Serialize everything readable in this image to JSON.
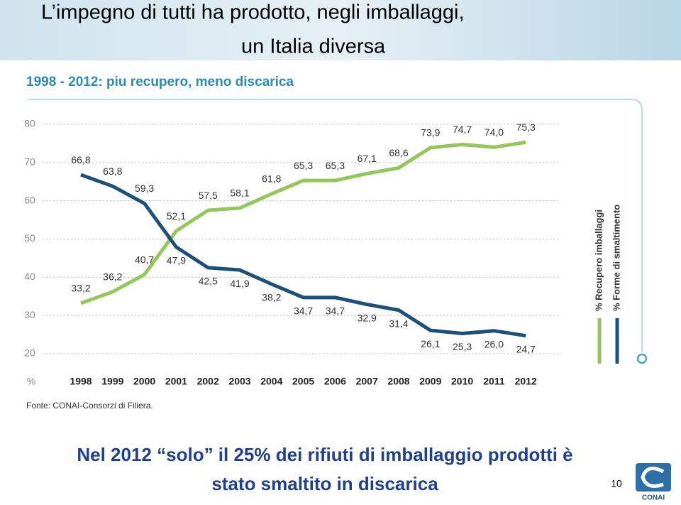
{
  "header": {
    "title_lines": [
      "L’impegno di tutti ha prodotto, negli imballaggi,",
      "un Italia diversa"
    ]
  },
  "chart_data": {
    "type": "line",
    "title": "1998 - 2012: piu recupero, meno discarica",
    "categories": [
      "1998",
      "1999",
      "2000",
      "2001",
      "2002",
      "2003",
      "2004",
      "2005",
      "2006",
      "2007",
      "2008",
      "2009",
      "2010",
      "2011",
      "2012"
    ],
    "series": [
      {
        "name": "% Recupero imballaggi",
        "color": "#93c75a",
        "values": [
          33.2,
          36.2,
          40.7,
          52.1,
          57.5,
          58.1,
          61.8,
          65.3,
          65.3,
          67.1,
          68.6,
          73.9,
          74.7,
          74.0,
          75.3
        ],
        "value_labels": [
          "33,2",
          "36,2",
          "40,7",
          "52,1",
          "57,5",
          "58,1",
          "61,8",
          "65,3",
          "65,3",
          "67,1",
          "68,6",
          "73,9",
          "74,7",
          "74,0",
          "75,3"
        ]
      },
      {
        "name": "% Forme di smaltimento",
        "color": "#1c4f7a",
        "values": [
          66.8,
          63.8,
          59.3,
          47.9,
          42.5,
          41.9,
          38.2,
          34.7,
          34.7,
          32.9,
          31.4,
          26.1,
          25.3,
          26.0,
          24.7
        ],
        "value_labels": [
          "66,8",
          "63,8",
          "59,3",
          "47,9",
          "42,5",
          "41,9",
          "38,2",
          "34,7",
          "34,7",
          "32,9",
          "31,4",
          "26,1",
          "25,3",
          "26,0",
          "24,7"
        ]
      }
    ],
    "ylim": [
      20,
      80
    ],
    "yticks": [
      20,
      30,
      40,
      50,
      60,
      70,
      80
    ],
    "y_unit": "%",
    "grid": true,
    "source": "Fonte: CONAI-Consorzi di Filiera."
  },
  "footer": {
    "text_lines": [
      "Nel 2012 “solo” il 25% dei rifiuti di imballaggio prodotti è",
      "stato smaltito in discarica"
    ],
    "page": "10",
    "logo": "CONAI"
  }
}
